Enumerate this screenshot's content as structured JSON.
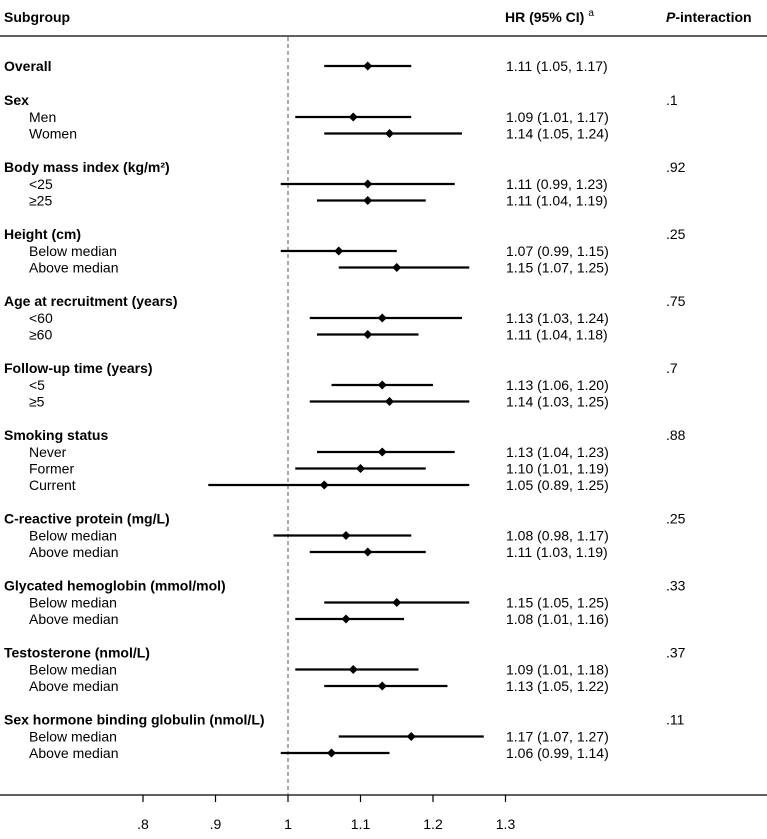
{
  "headers": {
    "subgroup": "Subgroup",
    "hr": "HR (95% CI)",
    "hr_sup": "a",
    "p_italic": "P",
    "p_rest": "-interaction"
  },
  "chart_data": {
    "type": "forest",
    "reference_line": 1,
    "xlim": [
      0.7,
      1.4
    ],
    "xticks": [
      ".8",
      ".9",
      "1",
      "1.1",
      "1.2",
      "1.3"
    ],
    "xtick_values": [
      0.8,
      0.9,
      1.0,
      1.1,
      1.2,
      1.3
    ],
    "groups": [
      {
        "name": "Overall",
        "p": "",
        "hr": 1.11,
        "lo": 1.05,
        "hi": 1.17,
        "ci_text": "1.11 (1.05, 1.17)",
        "rows": []
      },
      {
        "name": "Sex",
        "p": ".1",
        "rows": [
          {
            "label": "Men",
            "hr": 1.09,
            "lo": 1.01,
            "hi": 1.17,
            "ci_text": "1.09 (1.01, 1.17)"
          },
          {
            "label": "Women",
            "hr": 1.14,
            "lo": 1.05,
            "hi": 1.24,
            "ci_text": "1.14 (1.05, 1.24)"
          }
        ]
      },
      {
        "name": "Body mass index (kg/m²)",
        "p": ".92",
        "rows": [
          {
            "label": "<25",
            "hr": 1.11,
            "lo": 0.99,
            "hi": 1.23,
            "ci_text": "1.11 (0.99, 1.23)"
          },
          {
            "label": "≥25",
            "hr": 1.11,
            "lo": 1.04,
            "hi": 1.19,
            "ci_text": "1.11 (1.04, 1.19)"
          }
        ]
      },
      {
        "name": "Height (cm)",
        "p": ".25",
        "rows": [
          {
            "label": "Below median",
            "hr": 1.07,
            "lo": 0.99,
            "hi": 1.15,
            "ci_text": "1.07 (0.99, 1.15)"
          },
          {
            "label": "Above median",
            "hr": 1.15,
            "lo": 1.07,
            "hi": 1.25,
            "ci_text": "1.15 (1.07, 1.25)"
          }
        ]
      },
      {
        "name": "Age at recruitment (years)",
        "p": ".75",
        "rows": [
          {
            "label": "<60",
            "hr": 1.13,
            "lo": 1.03,
            "hi": 1.24,
            "ci_text": "1.13 (1.03, 1.24)"
          },
          {
            "label": "≥60",
            "hr": 1.11,
            "lo": 1.04,
            "hi": 1.18,
            "ci_text": "1.11 (1.04, 1.18)"
          }
        ]
      },
      {
        "name": "Follow-up time (years)",
        "p": ".7",
        "rows": [
          {
            "label": "<5",
            "hr": 1.13,
            "lo": 1.06,
            "hi": 1.2,
            "ci_text": "1.13 (1.06, 1.20)"
          },
          {
            "label": "≥5",
            "hr": 1.14,
            "lo": 1.03,
            "hi": 1.25,
            "ci_text": "1.14 (1.03, 1.25)"
          }
        ]
      },
      {
        "name": "Smoking status",
        "p": ".88",
        "rows": [
          {
            "label": "Never",
            "hr": 1.13,
            "lo": 1.04,
            "hi": 1.23,
            "ci_text": "1.13 (1.04, 1.23)"
          },
          {
            "label": "Former",
            "hr": 1.1,
            "lo": 1.01,
            "hi": 1.19,
            "ci_text": "1.10 (1.01, 1.19)"
          },
          {
            "label": "Current",
            "hr": 1.05,
            "lo": 0.89,
            "hi": 1.25,
            "ci_text": "1.05 (0.89, 1.25)"
          }
        ]
      },
      {
        "name": "C-reactive protein (mg/L)",
        "p": ".25",
        "rows": [
          {
            "label": "Below median",
            "hr": 1.08,
            "lo": 0.98,
            "hi": 1.17,
            "ci_text": "1.08 (0.98, 1.17)"
          },
          {
            "label": "Above median",
            "hr": 1.11,
            "lo": 1.03,
            "hi": 1.19,
            "ci_text": "1.11 (1.03, 1.19)"
          }
        ]
      },
      {
        "name": "Glycated hemoglobin (mmol/mol)",
        "p": ".33",
        "rows": [
          {
            "label": "Below median",
            "hr": 1.15,
            "lo": 1.05,
            "hi": 1.25,
            "ci_text": "1.15 (1.05, 1.25)"
          },
          {
            "label": "Above median",
            "hr": 1.08,
            "lo": 1.01,
            "hi": 1.16,
            "ci_text": "1.08 (1.01, 1.16)"
          }
        ]
      },
      {
        "name": "Testosterone (nmol/L)",
        "p": ".37",
        "rows": [
          {
            "label": "Below median",
            "hr": 1.09,
            "lo": 1.01,
            "hi": 1.18,
            "ci_text": "1.09 (1.01, 1.18)"
          },
          {
            "label": "Above median",
            "hr": 1.13,
            "lo": 1.05,
            "hi": 1.22,
            "ci_text": "1.13 (1.05, 1.22)"
          }
        ]
      },
      {
        "name": "Sex hormone binding globulin (nmol/L)",
        "p": ".11",
        "rows": [
          {
            "label": "Below median",
            "hr": 1.17,
            "lo": 1.07,
            "hi": 1.27,
            "ci_text": "1.17 (1.07, 1.27)"
          },
          {
            "label": "Above median",
            "hr": 1.06,
            "lo": 0.99,
            "hi": 1.14,
            "ci_text": "1.06 (0.99, 1.14)"
          }
        ]
      }
    ]
  }
}
